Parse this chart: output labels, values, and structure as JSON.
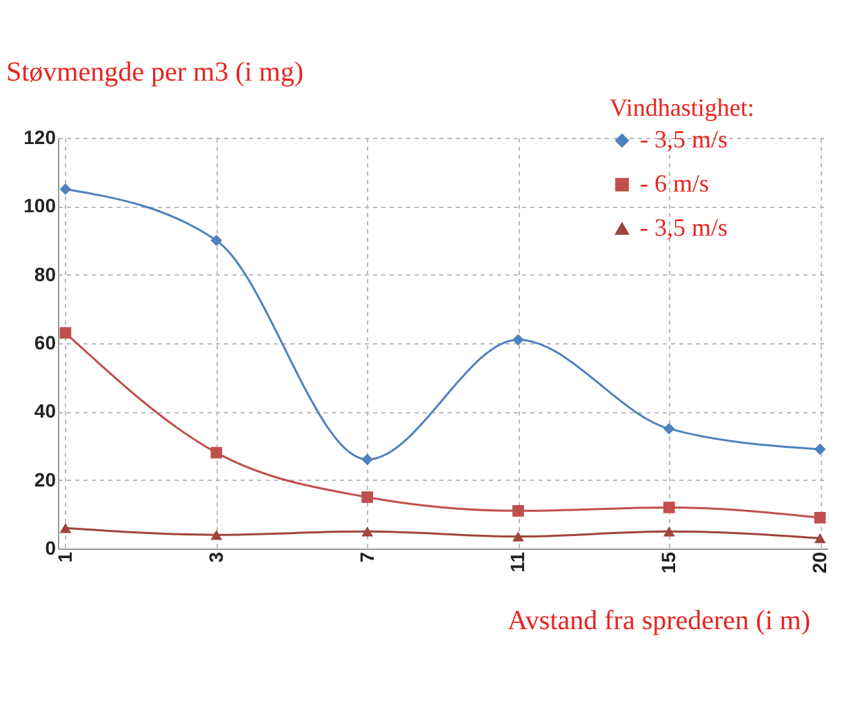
{
  "chart_data": {
    "type": "line",
    "xlabel": "Avstand fra sprederen (i m)",
    "ylabel": "Støvmengde per m3 (i mg)",
    "legend_title": "Vindhastighet:",
    "categories": [
      "1",
      "3",
      "7",
      "11",
      "15",
      "20"
    ],
    "series": [
      {
        "name": "- 3,5 m/s",
        "color": "#4f81bd",
        "marker": "diamond",
        "values": [
          105,
          90,
          26,
          61,
          35,
          29
        ]
      },
      {
        "name": "- 6 m/s",
        "color": "#c0504d",
        "marker": "square",
        "values": [
          63,
          28,
          15,
          11,
          12,
          9
        ]
      },
      {
        "name": "- 3,5 m/s",
        "color": "#a0453a",
        "marker": "triangle",
        "values": [
          6,
          4,
          5,
          3.5,
          5,
          3
        ]
      }
    ],
    "ylim": [
      0,
      120
    ],
    "yticks": [
      0,
      20,
      40,
      60,
      80,
      100,
      120
    ],
    "grid": true,
    "legend": "top right"
  }
}
